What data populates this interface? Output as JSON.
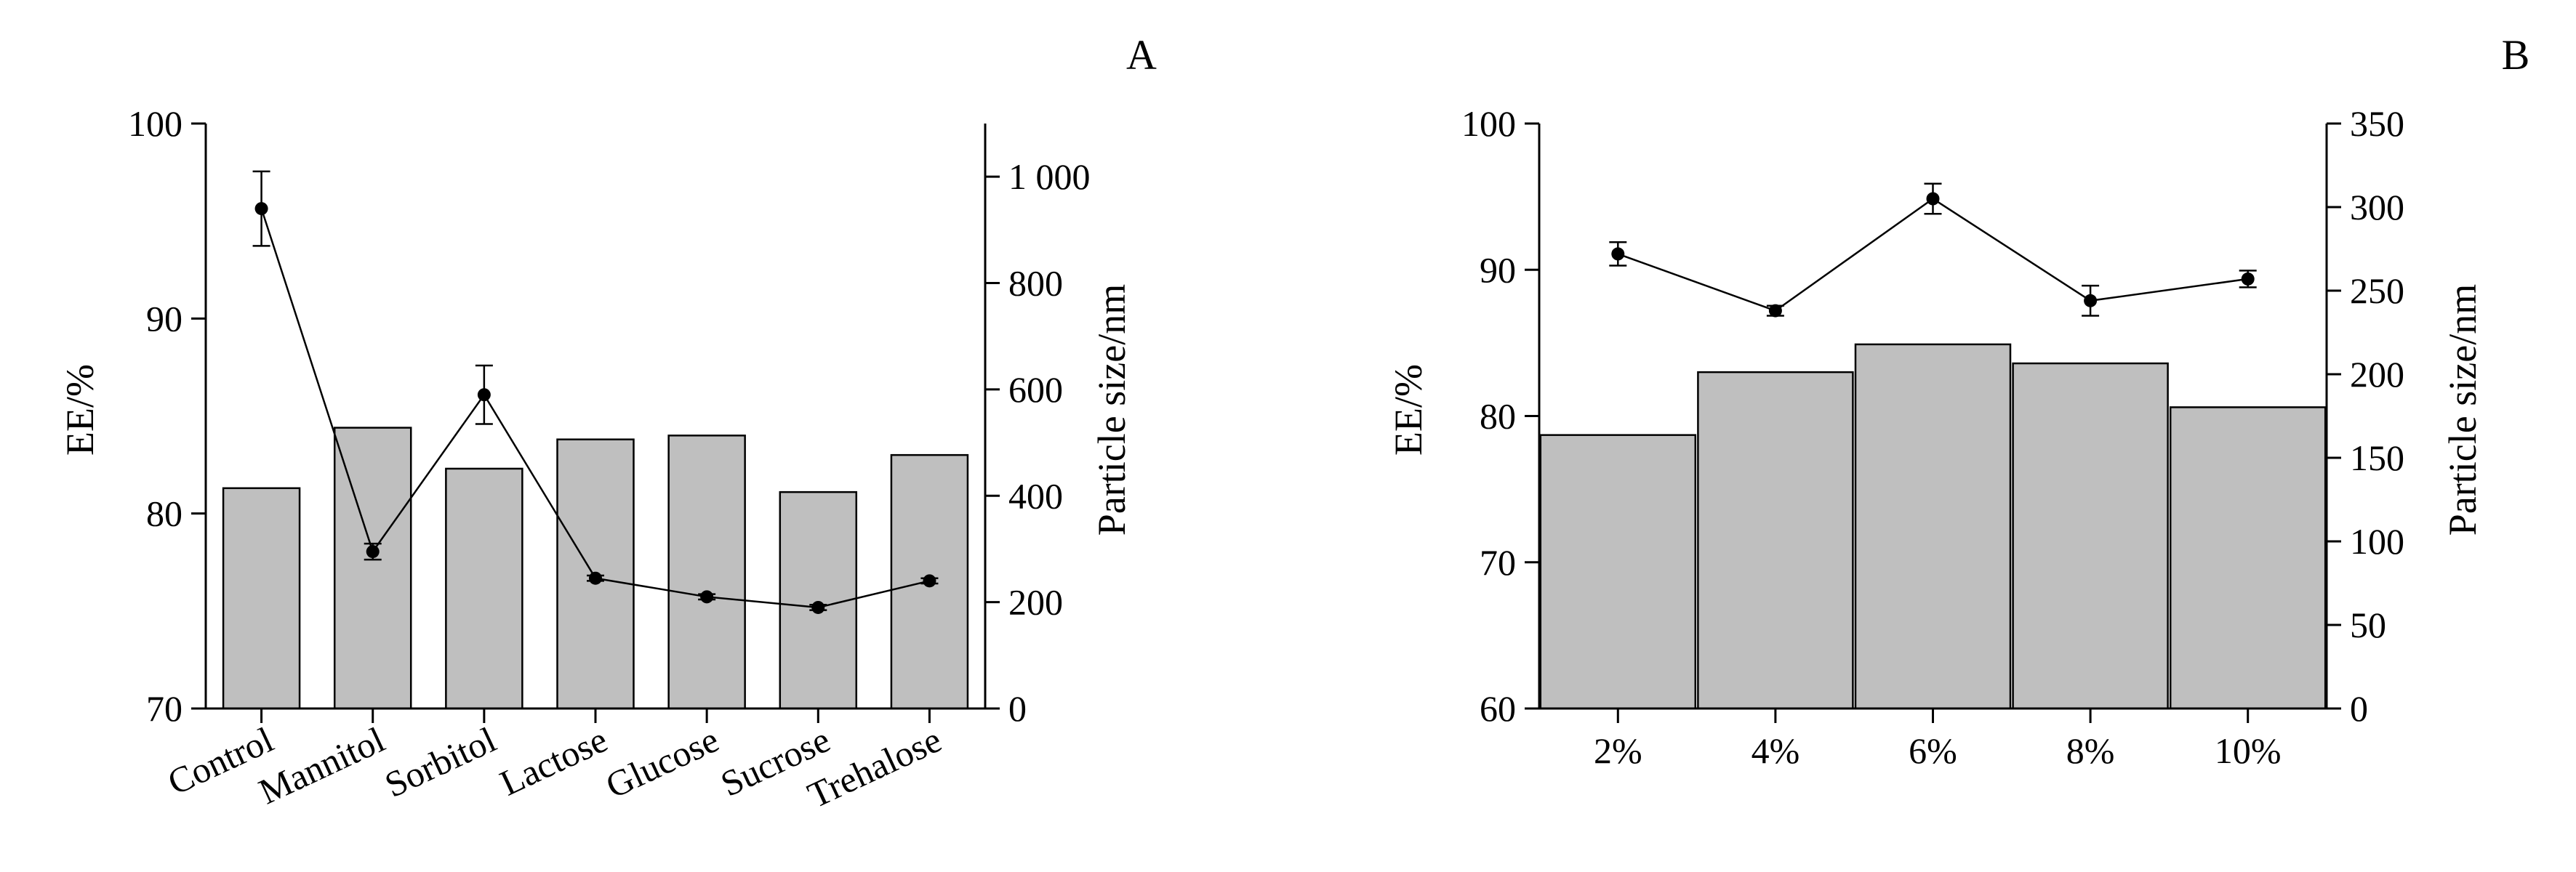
{
  "chart_data": [
    {
      "panel": "A",
      "type": "bar+line",
      "categories": [
        "Control",
        "Mannitol",
        "Sorbitol",
        "Lactose",
        "Glucose",
        "Sucrose",
        "Trehalose"
      ],
      "left_axis": {
        "label": "EE/%",
        "ylim": [
          70,
          100
        ],
        "ticks": [
          70,
          80,
          90,
          100
        ],
        "tick_labels": [
          "70",
          "80",
          "90",
          "100"
        ]
      },
      "right_axis": {
        "label": "Particle size/nm",
        "ylim": [
          0,
          1100
        ],
        "ticks": [
          0,
          200,
          400,
          600,
          800,
          1000
        ],
        "tick_labels": [
          "0",
          "200",
          "400",
          "600",
          "800",
          "1 000"
        ]
      },
      "series": [
        {
          "name": "EE",
          "kind": "bar",
          "axis": "left",
          "values": [
            81.3,
            84.4,
            82.3,
            83.8,
            84.0,
            81.1,
            83.0
          ]
        },
        {
          "name": "Particle size",
          "kind": "line",
          "axis": "right",
          "values": [
            940,
            295,
            590,
            245,
            210,
            190,
            240
          ],
          "errors": [
            70,
            15,
            55,
            5,
            5,
            5,
            5
          ]
        }
      ]
    },
    {
      "panel": "B",
      "type": "bar+line",
      "categories": [
        "2%",
        "4%",
        "6%",
        "8%",
        "10%"
      ],
      "left_axis": {
        "label": "EE/%",
        "ylim": [
          60,
          100
        ],
        "ticks": [
          60,
          70,
          80,
          90,
          100
        ],
        "tick_labels": [
          "60",
          "70",
          "80",
          "90",
          "100"
        ]
      },
      "right_axis": {
        "label": "Particle size/nm",
        "ylim": [
          0,
          350
        ],
        "ticks": [
          0,
          50,
          100,
          150,
          200,
          250,
          300,
          350
        ],
        "tick_labels": [
          "0",
          "50",
          "100",
          "150",
          "200",
          "250",
          "300",
          "350"
        ]
      },
      "series": [
        {
          "name": "EE",
          "kind": "bar",
          "axis": "left",
          "values": [
            78.7,
            83.0,
            84.9,
            83.6,
            80.6
          ]
        },
        {
          "name": "Particle size",
          "kind": "line",
          "axis": "right",
          "values": [
            272,
            238,
            305,
            244,
            257
          ],
          "errors": [
            7,
            3,
            9,
            9,
            5
          ]
        }
      ]
    }
  ]
}
